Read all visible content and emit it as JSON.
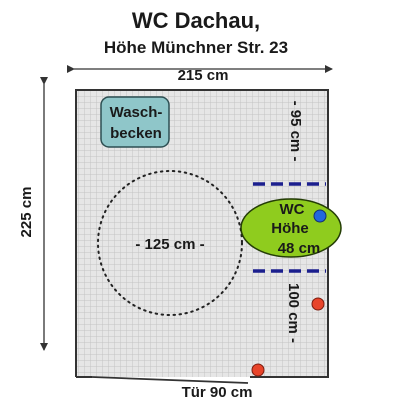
{
  "title": "WC Dachau,",
  "subtitle": "Höhe Münchner Str. 23",
  "dimensions": {
    "width": "215 cm",
    "height": "225 cm",
    "top_right": "- 95 cm -",
    "bottom_right": "100 cm -",
    "turning_circle": "- 125 cm -"
  },
  "sink_label": {
    "line1": "Wasch-",
    "line2": "becken"
  },
  "toilet_label": {
    "line1": "WC",
    "line2": "Höhe",
    "line3": "48 cm"
  },
  "door_label": "Tür 90 cm",
  "colors": {
    "grid_fill": "#e6e6e6",
    "grid_line": "#c8c8c8",
    "wall": "#333333",
    "sink": "#8fc6c9",
    "toilet": "#8fcc1e",
    "grab_bar": "#1b1f8e",
    "marker_red": "#e8442a",
    "marker_blue": "#2266dd"
  }
}
